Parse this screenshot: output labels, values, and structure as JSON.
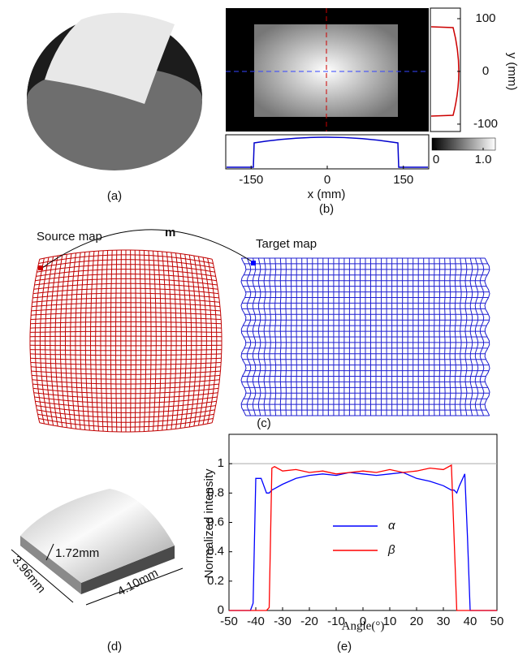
{
  "panels": {
    "a": "(a)",
    "b": "(b)",
    "c": "(c)",
    "d": "(d)",
    "e": "(e)"
  },
  "panel_b": {
    "xlabel": "x (mm)",
    "ylabel": "y (mm)",
    "xlim": [
      -200,
      200
    ],
    "xticks": [
      -150,
      0,
      150
    ],
    "ylim": [
      -114,
      120
    ],
    "yticks": [
      -100,
      0,
      100
    ],
    "colorbar_ticks": [
      {
        "value": 0,
        "label": "0"
      },
      {
        "value": 1,
        "label": "1.0"
      }
    ]
  },
  "panel_c": {
    "source_label": "Source map",
    "target_label": "Target map",
    "mapping_label": "m"
  },
  "panel_d": {
    "thickness": "1.72mm",
    "width": "3.96mm",
    "length": "4.10mm"
  },
  "chart_data": {
    "type": "line",
    "xlabel": "Angle(°)",
    "ylabel": "Normalized intensity",
    "x": [
      -50,
      -45,
      -42,
      -41,
      -40,
      -38,
      -36,
      -35,
      -34,
      -33,
      -30,
      -25,
      -20,
      -15,
      -10,
      -5,
      0,
      5,
      10,
      15,
      20,
      25,
      30,
      33,
      34,
      35,
      36,
      38,
      39,
      40,
      42,
      45,
      50
    ],
    "series": [
      {
        "name": "α",
        "color": "#0000ff",
        "values": [
          0,
          0,
          0,
          0.05,
          0.9,
          0.9,
          0.8,
          0.8,
          0.82,
          0.83,
          0.86,
          0.9,
          0.92,
          0.93,
          0.92,
          0.94,
          0.93,
          0.92,
          0.93,
          0.94,
          0.9,
          0.88,
          0.85,
          0.82,
          0.82,
          0.8,
          0.85,
          0.93,
          0.5,
          0,
          0,
          0,
          0
        ]
      },
      {
        "name": "β",
        "color": "#ff0000",
        "values": [
          0,
          0,
          0,
          0,
          0,
          0,
          0,
          0.02,
          0.97,
          0.98,
          0.95,
          0.96,
          0.94,
          0.95,
          0.93,
          0.94,
          0.95,
          0.94,
          0.96,
          0.94,
          0.95,
          0.97,
          0.96,
          0.99,
          0.5,
          0,
          0,
          0,
          0,
          0,
          0,
          0,
          0
        ]
      }
    ],
    "xlim": [
      -50,
      50
    ],
    "xticks": [
      -50,
      -40,
      -30,
      -20,
      -10,
      0,
      10,
      20,
      30,
      40,
      50
    ],
    "ylim": [
      0,
      1.2
    ],
    "yticks": [
      0,
      0.2,
      0.4,
      0.6,
      0.8,
      1
    ],
    "reference_line": 1
  }
}
